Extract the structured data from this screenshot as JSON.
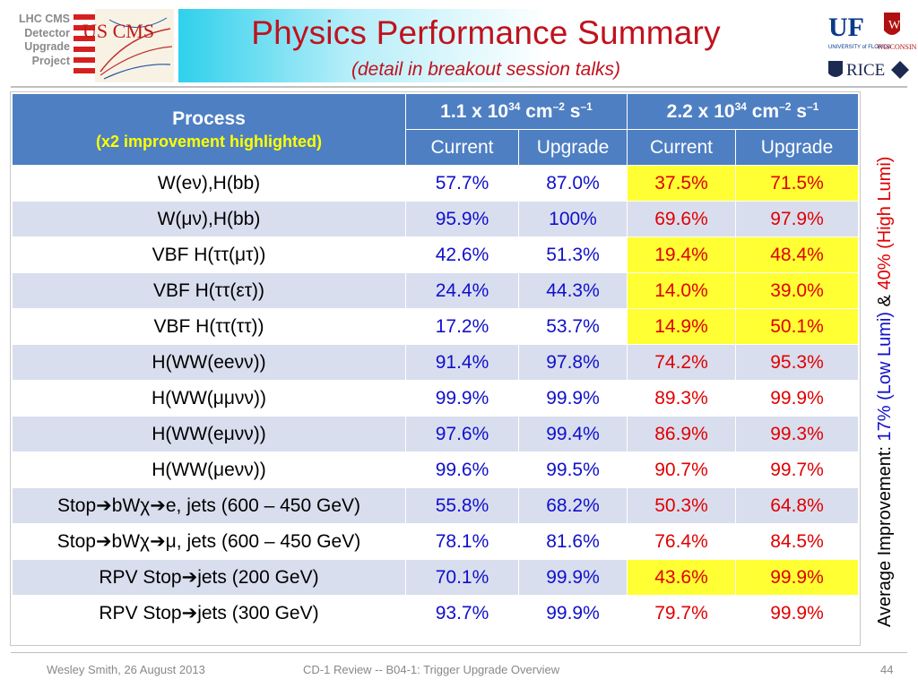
{
  "header": {
    "lhc_label": [
      "LHC CMS",
      "Detector",
      "Upgrade",
      "Project"
    ],
    "logo_text": "US CMS",
    "title": "Physics Performance Summary",
    "subtitle": "(detail in breakout session talks)",
    "right_logos": {
      "uf": "UF",
      "uf_sub": "UNIVERSITY of FLORIDA",
      "wisconsin": "WISCONSIN",
      "rice": "RICE"
    }
  },
  "table": {
    "process_header": "Process",
    "process_subheader": "(x2 improvement highlighted)",
    "lumi_low": {
      "prefix": "1.1 x 10",
      "exp1": "34",
      "mid": " cm",
      "exp2": "–2",
      "unit": " s",
      "exp3": "–1"
    },
    "lumi_high": {
      "prefix": "2.2 x 10",
      "exp1": "34",
      "mid": " cm",
      "exp2": "–2",
      "unit": " s",
      "exp3": "–1"
    },
    "sub_headers": [
      "Current",
      "Upgrade",
      "Current",
      "Upgrade"
    ],
    "rows": [
      {
        "process": "W(eν),H(bb)",
        "values": [
          "57.7%",
          "87.0%",
          "37.5%",
          "71.5%"
        ],
        "highlight": true
      },
      {
        "process": "W(μν),H(bb)",
        "values": [
          "95.9%",
          "100%",
          "69.6%",
          "97.9%"
        ],
        "highlight": false
      },
      {
        "process": "VBF H(ττ(μτ))",
        "values": [
          "42.6%",
          "51.3%",
          "19.4%",
          "48.4%"
        ],
        "highlight": true
      },
      {
        "process": "VBF H(ττ(ετ))",
        "values": [
          "24.4%",
          "44.3%",
          "14.0%",
          "39.0%"
        ],
        "highlight": true
      },
      {
        "process": "VBF H(ττ(ττ))",
        "values": [
          "17.2%",
          "53.7%",
          "14.9%",
          "50.1%"
        ],
        "highlight": true
      },
      {
        "process": "H(WW(eeνν))",
        "values": [
          "91.4%",
          "97.8%",
          "74.2%",
          "95.3%"
        ],
        "highlight": false
      },
      {
        "process": "H(WW(μμνν))",
        "values": [
          "99.9%",
          "99.9%",
          "89.3%",
          "99.9%"
        ],
        "highlight": false
      },
      {
        "process": "H(WW(eμνν))",
        "values": [
          "97.6%",
          "99.4%",
          "86.9%",
          "99.3%"
        ],
        "highlight": false
      },
      {
        "process": "H(WW(μeνν))",
        "values": [
          "99.6%",
          "99.5%",
          "90.7%",
          "99.7%"
        ],
        "highlight": false
      },
      {
        "process": "Stop➔bWχ➔e, jets (600 – 450 GeV)",
        "values": [
          "55.8%",
          "68.2%",
          "50.3%",
          "64.8%"
        ],
        "highlight": false
      },
      {
        "process": "Stop➔bWχ➔μ, jets (600 – 450 GeV)",
        "values": [
          "78.1%",
          "81.6%",
          "76.4%",
          "84.5%"
        ],
        "highlight": false
      },
      {
        "process": "RPV Stop➔jets (200 GeV)",
        "values": [
          "70.1%",
          "99.9%",
          "43.6%",
          "99.9%"
        ],
        "highlight": true
      },
      {
        "process": "RPV Stop➔jets (300 GeV)",
        "values": [
          "93.7%",
          "99.9%",
          "79.7%",
          "99.9%"
        ],
        "highlight": false
      }
    ]
  },
  "side_label": {
    "prefix": "Average Improvement: ",
    "low": "17% (Low Lumi)",
    "amp": " & ",
    "high": "40% (High Lumi)"
  },
  "footer": {
    "author": "Wesley Smith, 26 August 2013",
    "center": "CD-1  Review -- B04-1: Trigger Upgrade Overview",
    "page": "44"
  },
  "colors": {
    "header_blue": "#4e7fc3",
    "band_stripe": "#d9deee",
    "highlight_yellow": "#ffff33",
    "low_lumi_blue": "#1010cc",
    "high_lumi_red": "#e00000",
    "title_red": "#c0121e"
  }
}
